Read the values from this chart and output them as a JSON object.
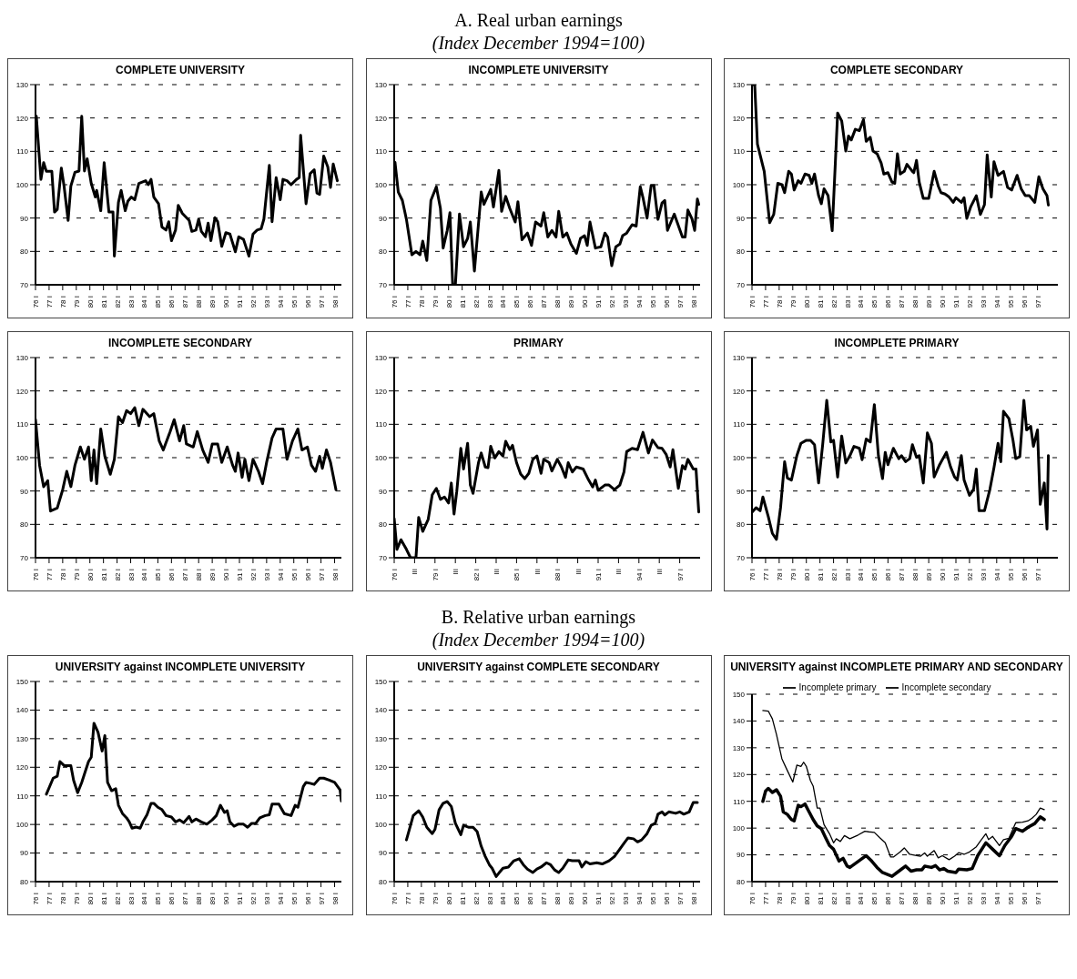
{
  "chart_data": [
    {
      "type": "other",
      "title": "A. Real urban earnings",
      "subtitle": "(Index December 1994=100)"
    },
    {
      "type": "line",
      "title": "COMPLETE UNIVERSITY",
      "color": "#000000",
      "xlim": [
        76,
        98.5
      ],
      "ylim": [
        70,
        130
      ],
      "yticks": [
        70,
        80,
        90,
        100,
        110,
        120,
        130
      ],
      "grid": "y",
      "xticks": [
        {
          "value": 76,
          "label": "76 I"
        },
        {
          "value": 77,
          "label": "77 I"
        },
        {
          "value": 78,
          "label": "78 I"
        },
        {
          "value": 79,
          "label": "79 I"
        },
        {
          "value": 80,
          "label": "80 I"
        },
        {
          "value": 81,
          "label": "81 I"
        },
        {
          "value": 82,
          "label": "82 I"
        },
        {
          "value": 83,
          "label": "83 I"
        },
        {
          "value": 84,
          "label": "84 I"
        },
        {
          "value": 85,
          "label": "85 I"
        },
        {
          "value": 86,
          "label": "86 I"
        },
        {
          "value": 87,
          "label": "87 I"
        },
        {
          "value": 88,
          "label": "88 I"
        },
        {
          "value": 89,
          "label": "89 I"
        },
        {
          "value": 90,
          "label": "90 I"
        },
        {
          "value": 91,
          "label": "91 I"
        },
        {
          "value": 92,
          "label": "92 I"
        },
        {
          "value": 93,
          "label": "93 I"
        },
        {
          "value": 94,
          "label": "94 I"
        },
        {
          "value": 95,
          "label": "95 I"
        },
        {
          "value": 96,
          "label": "96 I"
        },
        {
          "value": 97,
          "label": "97 I"
        },
        {
          "value": 98,
          "label": "98 I"
        }
      ],
      "x": [
        76.06,
        76.4,
        76.6,
        76.8,
        77.2,
        77.4,
        77.6,
        77.9,
        78.1,
        78.4,
        78.6,
        78.9,
        79.2,
        79.4,
        79.6,
        79.8,
        80.1,
        80.4,
        80.5,
        80.8,
        81.05,
        81.4,
        81.7,
        81.8,
        82.1,
        82.3,
        82.6,
        82.8,
        83.05,
        83.3,
        83.6,
        84.1,
        84.3,
        84.5,
        84.7,
        85.05,
        85.3,
        85.6,
        85.8,
        86,
        86.3,
        86.5,
        86.8,
        87.3,
        87.5,
        87.8,
        88,
        88.2,
        88.5,
        88.7,
        88.9,
        89.2,
        89.4,
        89.7,
        90,
        90.3,
        90.7,
        90.95,
        91.3,
        91.7,
        92,
        92.3,
        92.6,
        92.8,
        93.2,
        93.4,
        93.7,
        94,
        94.2,
        94.5,
        94.8,
        95.2,
        95.4,
        95.5,
        95.9,
        96.2,
        96.5,
        96.7,
        96.9,
        97.2,
        97.5,
        97.7,
        97.9,
        98.2
      ],
      "values": [
        120.5,
        101.6,
        106.6,
        104,
        104,
        91.8,
        92.6,
        105,
        99.6,
        89.3,
        99.6,
        103.7,
        104.1,
        120.5,
        104.1,
        107.8,
        100.4,
        96.3,
        98.3,
        92.2,
        106.6,
        91.8,
        91.8,
        78.6,
        94.7,
        98.3,
        92.2,
        95.1,
        96.3,
        95.5,
        100.4,
        101.2,
        100,
        101.6,
        96.3,
        94.3,
        87.3,
        86.4,
        88.9,
        83.2,
        86.4,
        93.8,
        91.4,
        89.3,
        86,
        86.4,
        89.7,
        86,
        84.4,
        88.5,
        83.2,
        90.1,
        88.9,
        81.5,
        85.6,
        85.2,
        79.9,
        84.4,
        83.6,
        78.6,
        85.2,
        86.4,
        86.8,
        89.7,
        105.8,
        88.9,
        102.1,
        95.5,
        101.6,
        101.2,
        100,
        101.6,
        102.1,
        114.8,
        94.3,
        103.3,
        104.5,
        97.5,
        97.1,
        108.6,
        105.3,
        99.2,
        106.2,
        101.2
      ]
    },
    {
      "type": "line",
      "title": "INCOMPLETE UNIVERSITY",
      "color": "#000000",
      "xlim": [
        76,
        98.5
      ],
      "ylim": [
        70,
        130
      ],
      "yticks": [
        70,
        80,
        90,
        100,
        110,
        120,
        130
      ],
      "grid": "y",
      "xticks": [
        {
          "value": 76,
          "label": "76 I"
        },
        {
          "value": 77,
          "label": "77 I"
        },
        {
          "value": 78,
          "label": "78 I"
        },
        {
          "value": 79,
          "label": "79 I"
        },
        {
          "value": 80,
          "label": "80 I"
        },
        {
          "value": 81,
          "label": "81 I"
        },
        {
          "value": 82,
          "label": "82 I"
        },
        {
          "value": 83,
          "label": "83 I"
        },
        {
          "value": 84,
          "label": "84 I"
        },
        {
          "value": 85,
          "label": "85 I"
        },
        {
          "value": 86,
          "label": "86 I"
        },
        {
          "value": 87,
          "label": "87 I"
        },
        {
          "value": 88,
          "label": "88 I"
        },
        {
          "value": 89,
          "label": "89 I"
        },
        {
          "value": 90,
          "label": "90 I"
        },
        {
          "value": 91,
          "label": "91 I"
        },
        {
          "value": 92,
          "label": "92 I"
        },
        {
          "value": 93,
          "label": "93 I"
        },
        {
          "value": 94,
          "label": "94 I"
        },
        {
          "value": 95,
          "label": "95 I"
        },
        {
          "value": 96,
          "label": "96 I"
        },
        {
          "value": 97,
          "label": "97 I"
        },
        {
          "value": 98,
          "label": "98 I"
        }
      ],
      "x": [
        76.06,
        76.3,
        76.6,
        76.9,
        77.3,
        77.6,
        77.9,
        78.1,
        78.4,
        78.7,
        79.1,
        79.4,
        79.6,
        79.9,
        80.1,
        80.3,
        80.5,
        80.8,
        81.1,
        81.4,
        81.6,
        81.9,
        82.4,
        82.6,
        83.1,
        83.3,
        83.7,
        83.9,
        84.2,
        84.5,
        84.9,
        85.1,
        85.4,
        85.8,
        86.1,
        86.4,
        86.8,
        87,
        87.3,
        87.6,
        87.9,
        88.1,
        88.4,
        88.7,
        89,
        89.4,
        89.7,
        90,
        90.2,
        90.4,
        90.8,
        91.2,
        91.5,
        91.7,
        92,
        92.3,
        92.6,
        92.8,
        93.1,
        93.5,
        93.8,
        94.1,
        94.3,
        94.6,
        94.9,
        95.1,
        95.4,
        95.7,
        95.9,
        96.1,
        96.6,
        97.2,
        97.4,
        97.6,
        97.9,
        98.1,
        98.3,
        98.4
      ],
      "values": [
        106.7,
        97.8,
        95.3,
        89.6,
        79,
        80,
        79,
        83.1,
        77.3,
        95.3,
        99.4,
        92.9,
        81,
        86.3,
        91.6,
        70,
        70,
        91.2,
        81.4,
        83.9,
        88.8,
        74.1,
        97.8,
        94.1,
        98.6,
        93.3,
        104.3,
        92,
        96.5,
        92.9,
        88.8,
        94.9,
        83.5,
        85.5,
        81.8,
        88.8,
        87.6,
        91.6,
        84.3,
        86.3,
        84.3,
        92,
        84.3,
        85.5,
        82.2,
        79.4,
        83.9,
        84.7,
        81.8,
        88.8,
        81,
        81.4,
        85.5,
        84.3,
        75.7,
        81.4,
        82.2,
        84.7,
        85.5,
        88,
        87.6,
        99.4,
        96.1,
        90,
        99.8,
        99.8,
        89.6,
        94.5,
        95.3,
        86.3,
        91.2,
        84.3,
        84.3,
        92.4,
        89.8,
        86.3,
        95.7,
        94.1
      ]
    },
    {
      "type": "line",
      "title": "COMPLETE SECONDARY",
      "color": "#000000",
      "xlim": [
        76,
        98.5
      ],
      "ylim": [
        70,
        130
      ],
      "yticks": [
        70,
        80,
        90,
        100,
        110,
        120,
        130
      ],
      "grid": "y",
      "xticks": [
        {
          "value": 76,
          "label": "76 I"
        },
        {
          "value": 77,
          "label": "77 I"
        },
        {
          "value": 78,
          "label": "78 I"
        },
        {
          "value": 79,
          "label": "79 I"
        },
        {
          "value": 80,
          "label": "80 I"
        },
        {
          "value": 81,
          "label": "81 I"
        },
        {
          "value": 82,
          "label": "82 I"
        },
        {
          "value": 83,
          "label": "83 I"
        },
        {
          "value": 84,
          "label": "84 I"
        },
        {
          "value": 85,
          "label": "85 I"
        },
        {
          "value": 86,
          "label": "86 I"
        },
        {
          "value": 87,
          "label": "87 I"
        },
        {
          "value": 88,
          "label": "88 I"
        },
        {
          "value": 89,
          "label": "89 I"
        },
        {
          "value": 90,
          "label": "90 I"
        },
        {
          "value": 91,
          "label": "91 I"
        },
        {
          "value": 92,
          "label": "92 I"
        },
        {
          "value": 93,
          "label": "93 I"
        },
        {
          "value": 94,
          "label": "94 I"
        },
        {
          "value": 95,
          "label": "95 I"
        },
        {
          "value": 96,
          "label": "96 I"
        },
        {
          "value": 97,
          "label": "97 I"
        }
      ],
      "x": [
        76.06,
        76.2,
        76.4,
        76.9,
        77.3,
        77.6,
        77.9,
        78.2,
        78.4,
        78.7,
        78.9,
        79.1,
        79.4,
        79.6,
        79.9,
        80.2,
        80.4,
        80.6,
        80.9,
        81.1,
        81.3,
        81.6,
        81.9,
        82.3,
        82.6,
        82.9,
        83.1,
        83.3,
        83.6,
        83.9,
        84.2,
        84.4,
        84.7,
        84.9,
        85.2,
        85.5,
        85.7,
        86,
        86.3,
        86.5,
        86.7,
        86.9,
        87.2,
        87.4,
        87.8,
        87.9,
        88.1,
        88.3,
        88.6,
        89,
        89.4,
        89.7,
        89.9,
        90.2,
        90.5,
        90.8,
        91,
        91.4,
        91.6,
        91.8,
        92.1,
        92.5,
        92.8,
        93.1,
        93.3,
        93.6,
        93.8,
        94.1,
        94.5,
        94.8,
        95.1,
        95.5,
        95.8,
        96.1,
        96.4,
        96.8,
        97.1,
        97.4,
        97.7,
        97.8
      ],
      "values": [
        130,
        130,
        112.2,
        104,
        88.6,
        91.1,
        100.4,
        100,
        97.6,
        104,
        103.2,
        98.4,
        101.2,
        100.4,
        103.2,
        102.8,
        100.4,
        103.2,
        96.7,
        94.3,
        98.8,
        96.7,
        86.2,
        121.5,
        119.1,
        110.1,
        114.6,
        113.4,
        116.6,
        116.2,
        119.5,
        113,
        114.2,
        110.1,
        109.3,
        106.5,
        103.2,
        103.6,
        100.8,
        100.4,
        109.3,
        103.2,
        104,
        106.1,
        104,
        103.6,
        107.3,
        100.8,
        95.9,
        95.9,
        104,
        99.6,
        97.6,
        97.2,
        96.3,
        94.7,
        96.1,
        94.7,
        96.1,
        89.9,
        93.5,
        96.7,
        91.1,
        94,
        108.9,
        96.3,
        106.9,
        102.8,
        104,
        99.2,
        98.4,
        102.8,
        98.8,
        96.7,
        96.7,
        94.7,
        102.4,
        98.8,
        96.7,
        93.9
      ]
    },
    {
      "type": "line",
      "title": "INCOMPLETE SECONDARY",
      "color": "#000000",
      "xlim": [
        76,
        98.5
      ],
      "ylim": [
        70,
        130
      ],
      "yticks": [
        70,
        80,
        90,
        100,
        110,
        120,
        130
      ],
      "grid": "y",
      "xticks": [
        {
          "value": 76,
          "label": "76 I"
        },
        {
          "value": 77,
          "label": "77 I"
        },
        {
          "value": 78,
          "label": "78 I"
        },
        {
          "value": 79,
          "label": "79 I"
        },
        {
          "value": 80,
          "label": "80 I"
        },
        {
          "value": 81,
          "label": "81 I"
        },
        {
          "value": 82,
          "label": "82 I"
        },
        {
          "value": 83,
          "label": "83 I"
        },
        {
          "value": 84,
          "label": "84 I"
        },
        {
          "value": 85,
          "label": "85 I"
        },
        {
          "value": 86,
          "label": "86 I"
        },
        {
          "value": 87,
          "label": "87 I"
        },
        {
          "value": 88,
          "label": "88 I"
        },
        {
          "value": 89,
          "label": "89 I"
        },
        {
          "value": 90,
          "label": "90 I"
        },
        {
          "value": 91,
          "label": "91 I"
        },
        {
          "value": 92,
          "label": "92 I"
        },
        {
          "value": 93,
          "label": "93 I"
        },
        {
          "value": 94,
          "label": "94 I"
        },
        {
          "value": 95,
          "label": "95 I"
        },
        {
          "value": 96,
          "label": "96 I"
        },
        {
          "value": 97,
          "label": "97 I"
        },
        {
          "value": 98,
          "label": "98 I"
        }
      ],
      "x": [
        76,
        76.3,
        76.6,
        76.9,
        77.1,
        77.6,
        78,
        78.3,
        78.6,
        78.9,
        79.3,
        79.6,
        79.9,
        80.1,
        80.3,
        80.5,
        80.8,
        81.1,
        81.5,
        81.8,
        82.1,
        82.4,
        82.7,
        83,
        83.3,
        83.6,
        83.9,
        84.4,
        84.7,
        85.1,
        85.4,
        85.9,
        86.2,
        86.6,
        86.9,
        87.1,
        87.6,
        87.9,
        88.3,
        88.7,
        89,
        89.4,
        89.7,
        90.1,
        90.5,
        90.7,
        90.9,
        91.2,
        91.4,
        91.7,
        92,
        92.4,
        92.7,
        93,
        93.4,
        93.7,
        94.2,
        94.5,
        94.9,
        95.3,
        95.6,
        96,
        96.3,
        96.6,
        96.9,
        97.1,
        97.4,
        97.7,
        98.1
      ],
      "values": [
        111.4,
        97.7,
        91.3,
        93.1,
        84,
        84.9,
        90.4,
        95.9,
        91.3,
        97.7,
        103.2,
        99.5,
        103.2,
        93.1,
        102.3,
        92.2,
        108.6,
        100.4,
        95,
        99.5,
        112.3,
        110.5,
        114.1,
        113.2,
        115,
        109.6,
        114.5,
        112.3,
        113.2,
        105,
        102.3,
        107.8,
        111.4,
        105,
        109.6,
        104.1,
        103.2,
        107.8,
        102.3,
        98.6,
        104.1,
        104.1,
        98.6,
        103.2,
        97.7,
        95.9,
        101.4,
        94.1,
        99.5,
        93.1,
        99.5,
        95.9,
        92.2,
        98.6,
        105.9,
        108.6,
        108.6,
        99.5,
        105,
        108.6,
        102.3,
        103.2,
        97.7,
        95.9,
        100.4,
        96.8,
        102.3,
        98.6,
        90.4
      ]
    },
    {
      "type": "line",
      "title": "PRIMARY",
      "color": "#000000",
      "xlim": [
        76,
        98.5
      ],
      "ylim": [
        70,
        130
      ],
      "yticks": [
        70,
        80,
        90,
        100,
        110,
        120,
        130
      ],
      "grid": "y",
      "xticks": [
        {
          "value": 76,
          "label": "76 I"
        },
        {
          "value": 77.5,
          "label": "III"
        },
        {
          "value": 79,
          "label": "79 I"
        },
        {
          "value": 80.5,
          "label": "III"
        },
        {
          "value": 82,
          "label": "82 I"
        },
        {
          "value": 83.5,
          "label": "III"
        },
        {
          "value": 85,
          "label": "85 I"
        },
        {
          "value": 86.5,
          "label": "III"
        },
        {
          "value": 88,
          "label": "88 I"
        },
        {
          "value": 89.5,
          "label": "III"
        },
        {
          "value": 91,
          "label": "91 I"
        },
        {
          "value": 92.5,
          "label": "III"
        },
        {
          "value": 94,
          "label": "94 I"
        },
        {
          "value": 95.5,
          "label": "III"
        },
        {
          "value": 97,
          "label": "97 I"
        }
      ],
      "x": [
        76,
        76.2,
        76.5,
        76.9,
        77.2,
        77.6,
        77.8,
        78.1,
        78.5,
        78.8,
        79.1,
        79.4,
        79.7,
        80,
        80.2,
        80.4,
        80.6,
        80.9,
        81.1,
        81.4,
        81.6,
        81.8,
        82.2,
        82.4,
        82.7,
        82.9,
        83.1,
        83.4,
        83.7,
        84,
        84.2,
        84.5,
        84.7,
        85,
        85.3,
        85.6,
        85.9,
        86.2,
        86.5,
        86.8,
        87,
        87.4,
        87.6,
        88,
        88.3,
        88.6,
        88.8,
        89.1,
        89.4,
        89.9,
        90.3,
        90.6,
        90.8,
        91,
        91.5,
        91.8,
        92.2,
        92.6,
        92.9,
        93.1,
        93.5,
        93.9,
        94.3,
        94.7,
        95,
        95.4,
        95.7,
        96,
        96.3,
        96.5,
        96.9,
        97.2,
        97.4,
        97.6,
        98,
        98.2,
        98.4
      ],
      "values": [
        81.7,
        72.5,
        75.4,
        72.5,
        70,
        70,
        82.1,
        77.9,
        81.5,
        88.9,
        90.8,
        87.5,
        88.2,
        86.4,
        92.4,
        83.1,
        89.8,
        102.8,
        96.6,
        104.3,
        91.8,
        89.3,
        98.5,
        101.4,
        97.2,
        97,
        103.4,
        99.9,
        101.8,
        100.5,
        104.9,
        102.4,
        103.7,
        98.5,
        95.1,
        93.7,
        95.3,
        99.5,
        100.5,
        95.3,
        99.5,
        98.5,
        96,
        99.5,
        97.2,
        94.1,
        98.5,
        95.7,
        97.2,
        96.6,
        93.3,
        91.2,
        93.3,
        90.2,
        91.8,
        91.8,
        90.4,
        91.8,
        95.7,
        101.8,
        102.8,
        102.4,
        107.6,
        101.4,
        105.3,
        103,
        102.8,
        101,
        97.2,
        102.4,
        90.8,
        97.6,
        96.6,
        99.5,
        96.6,
        96.6,
        83.7
      ]
    },
    {
      "type": "line",
      "title": "INCOMPLETE PRIMARY",
      "color": "#000000",
      "xlim": [
        76,
        98.5
      ],
      "ylim": [
        70,
        130
      ],
      "yticks": [
        70,
        80,
        90,
        100,
        110,
        120,
        130
      ],
      "grid": "y",
      "xticks": [
        {
          "value": 76,
          "label": "76 I"
        },
        {
          "value": 77,
          "label": "77 I"
        },
        {
          "value": 78,
          "label": "78 I"
        },
        {
          "value": 79,
          "label": "79 I"
        },
        {
          "value": 80,
          "label": "80 I"
        },
        {
          "value": 81,
          "label": "81 I"
        },
        {
          "value": 82,
          "label": "82 I"
        },
        {
          "value": 83,
          "label": "83 I"
        },
        {
          "value": 84,
          "label": "84 I"
        },
        {
          "value": 85,
          "label": "85 I"
        },
        {
          "value": 86,
          "label": "86 I"
        },
        {
          "value": 87,
          "label": "87 I"
        },
        {
          "value": 88,
          "label": "88 I"
        },
        {
          "value": 89,
          "label": "89 I"
        },
        {
          "value": 90,
          "label": "90 I"
        },
        {
          "value": 91,
          "label": "91 I"
        },
        {
          "value": 92,
          "label": "92 I"
        },
        {
          "value": 93,
          "label": "93 I"
        },
        {
          "value": 94,
          "label": "94 I"
        },
        {
          "value": 95,
          "label": "95 I"
        },
        {
          "value": 96,
          "label": "96 I"
        },
        {
          "value": 97,
          "label": "97 I"
        }
      ],
      "x": [
        76,
        76.3,
        76.6,
        76.8,
        77.2,
        77.5,
        77.8,
        78.1,
        78.4,
        78.6,
        78.9,
        79.3,
        79.6,
        80,
        80.3,
        80.6,
        80.9,
        81.2,
        81.5,
        81.8,
        82,
        82.3,
        82.6,
        82.9,
        83.2,
        83.5,
        83.9,
        84.1,
        84.4,
        84.7,
        85,
        85.3,
        85.6,
        85.8,
        86,
        86.4,
        86.8,
        87,
        87.3,
        87.6,
        87.8,
        88.1,
        88.3,
        88.6,
        88.9,
        89.2,
        89.4,
        89.8,
        90.3,
        90.6,
        90.9,
        91.1,
        91.4,
        91.6,
        92,
        92.3,
        92.5,
        92.7,
        93.1,
        93.5,
        93.8,
        94.1,
        94.3,
        94.5,
        94.9,
        95.2,
        95.4,
        95.7,
        96,
        96.2,
        96.5,
        96.7,
        97,
        97.2,
        97.5,
        97.7,
        97.8
      ],
      "values": [
        83.6,
        85,
        84.1,
        88.2,
        82.3,
        77.3,
        75.5,
        85,
        98.8,
        93.9,
        93.3,
        100.6,
        104.3,
        105.2,
        105.2,
        103.9,
        92.4,
        103.9,
        117.2,
        104.7,
        105.2,
        94.2,
        106.5,
        98.4,
        100.6,
        103.4,
        102.8,
        99.4,
        105.6,
        104.7,
        115.9,
        100.6,
        93.7,
        101.6,
        97.9,
        102.8,
        99.7,
        100.6,
        98.8,
        99.7,
        103.9,
        100.1,
        100.6,
        92.4,
        107.4,
        104.3,
        94.2,
        97.9,
        101.6,
        97.3,
        94.2,
        93.3,
        100.6,
        93.3,
        88.7,
        90.5,
        96.6,
        84.1,
        84.1,
        90.5,
        97,
        104.3,
        98.8,
        113.9,
        111.7,
        105.2,
        99.7,
        100.3,
        117.2,
        108.3,
        109.4,
        103.4,
        108.3,
        86,
        92.4,
        78.6,
        100.6
      ]
    },
    {
      "type": "other",
      "title": "B. Relative urban earnings",
      "subtitle": "(Index December 1994=100)"
    },
    {
      "type": "line",
      "title": "UNIVERSITY against INCOMPLETE UNIVERSITY",
      "color": "#000000",
      "xlim": [
        76,
        98.5
      ],
      "ylim": [
        80,
        150
      ],
      "yticks": [
        80,
        90,
        100,
        110,
        120,
        130,
        140,
        150
      ],
      "grid": "y",
      "xticks": [
        {
          "value": 76,
          "label": "76 I"
        },
        {
          "value": 77,
          "label": "77 I"
        },
        {
          "value": 78,
          "label": "78 I"
        },
        {
          "value": 79,
          "label": "79 I"
        },
        {
          "value": 80,
          "label": "80 I"
        },
        {
          "value": 81,
          "label": "81 I"
        },
        {
          "value": 82,
          "label": "82 I"
        },
        {
          "value": 83,
          "label": "83 I"
        },
        {
          "value": 84,
          "label": "84 I"
        },
        {
          "value": 85,
          "label": "85 I"
        },
        {
          "value": 86,
          "label": "86 I"
        },
        {
          "value": 87,
          "label": "87 I"
        },
        {
          "value": 88,
          "label": "88 I"
        },
        {
          "value": 89,
          "label": "89 I"
        },
        {
          "value": 90,
          "label": "90 I"
        },
        {
          "value": 91,
          "label": "91 I"
        },
        {
          "value": 92,
          "label": "92 I"
        },
        {
          "value": 93,
          "label": "93 I"
        },
        {
          "value": 94,
          "label": "94 I"
        },
        {
          "value": 95,
          "label": "95 I"
        },
        {
          "value": 96,
          "label": "96 I"
        },
        {
          "value": 97,
          "label": "97 I"
        },
        {
          "value": 98,
          "label": "98 I"
        }
      ],
      "x": [
        76.8,
        77.3,
        77.6,
        77.8,
        78.1,
        78.6,
        78.8,
        79.1,
        79.4,
        79.6,
        79.9,
        80.1,
        80.3,
        80.6,
        80.9,
        81.1,
        81.3,
        81.6,
        81.9,
        82.1,
        82.4,
        82.7,
        82.9,
        83.1,
        83.4,
        83.7,
        83.9,
        84.2,
        84.5,
        84.7,
        85,
        85.3,
        85.6,
        86,
        86.3,
        86.6,
        86.9,
        87.3,
        87.5,
        87.8,
        88.2,
        88.6,
        89,
        89.3,
        89.6,
        89.9,
        90.1,
        90.3,
        90.6,
        90.9,
        91.3,
        91.6,
        91.9,
        92.2,
        92.5,
        92.9,
        93.2,
        93.4,
        93.9,
        94.3,
        94.8,
        95.1,
        95.3,
        95.7,
        95.9,
        96.2,
        96.5,
        96.9,
        97.2,
        97.6,
        98,
        98.4,
        98.5
      ],
      "values": [
        110.6,
        116.2,
        116.9,
        122,
        120.6,
        120.6,
        115.5,
        111.1,
        114.7,
        117.6,
        122,
        123.5,
        135.4,
        132.2,
        125.7,
        131.1,
        114.7,
        111.8,
        112.5,
        106.7,
        103.8,
        102.3,
        100.9,
        98.7,
        99.1,
        98.7,
        100.9,
        103.4,
        107.4,
        107.4,
        106,
        105.2,
        103.1,
        102.6,
        100.9,
        101.6,
        100.6,
        102.8,
        100.9,
        101.9,
        100.9,
        100.1,
        101.6,
        103.1,
        106.7,
        104.2,
        104.8,
        100.9,
        99.4,
        100.1,
        100.1,
        99,
        100.4,
        100.4,
        102.3,
        103.1,
        103.4,
        107.1,
        107.1,
        103.8,
        103.1,
        106.7,
        106,
        113.3,
        114.7,
        114.4,
        114,
        116.2,
        116.2,
        115.5,
        114.7,
        112.1,
        108.2
      ]
    },
    {
      "type": "line",
      "title": "UNIVERSITY against COMPLETE SECONDARY",
      "color": "#000000",
      "xlim": [
        76,
        98.5
      ],
      "ylim": [
        80,
        150
      ],
      "yticks": [
        80,
        90,
        100,
        110,
        120,
        130,
        140,
        150
      ],
      "grid": "y",
      "xticks": [
        {
          "value": 76,
          "label": "76 I"
        },
        {
          "value": 77,
          "label": "77 I"
        },
        {
          "value": 78,
          "label": "78 I"
        },
        {
          "value": 79,
          "label": "79 I"
        },
        {
          "value": 80,
          "label": "80 I"
        },
        {
          "value": 81,
          "label": "81 I"
        },
        {
          "value": 82,
          "label": "82 I"
        },
        {
          "value": 83,
          "label": "83 I"
        },
        {
          "value": 84,
          "label": "84 I"
        },
        {
          "value": 85,
          "label": "85 I"
        },
        {
          "value": 86,
          "label": "86 I"
        },
        {
          "value": 87,
          "label": "87 I"
        },
        {
          "value": 88,
          "label": "88 I"
        },
        {
          "value": 89,
          "label": "89 I"
        },
        {
          "value": 90,
          "label": "90 I"
        },
        {
          "value": 91,
          "label": "91 I"
        },
        {
          "value": 92,
          "label": "92 I"
        },
        {
          "value": 93,
          "label": "93 I"
        },
        {
          "value": 94,
          "label": "94 I"
        },
        {
          "value": 95,
          "label": "95 I"
        },
        {
          "value": 96,
          "label": "96 I"
        },
        {
          "value": 97,
          "label": "97 I"
        },
        {
          "value": 98,
          "label": "98 I"
        }
      ],
      "x": [
        76.9,
        77.2,
        77.4,
        77.8,
        78.1,
        78.4,
        78.8,
        79,
        79.3,
        79.6,
        79.9,
        80.2,
        80.5,
        80.9,
        81.1,
        81.5,
        81.8,
        82.1,
        82.4,
        82.7,
        83,
        83.2,
        83.5,
        83.7,
        84,
        84.4,
        84.8,
        85.2,
        85.5,
        85.8,
        86.2,
        86.5,
        86.8,
        87.2,
        87.5,
        87.8,
        88.1,
        88.4,
        88.8,
        89.1,
        89.6,
        89.8,
        90.1,
        90.4,
        90.9,
        91.3,
        91.8,
        92.2,
        92.6,
        92.9,
        93.2,
        93.6,
        93.9,
        94.2,
        94.6,
        94.9,
        95.2,
        95.4,
        95.7,
        95.9,
        96.2,
        96.7,
        97,
        97.3,
        97.7,
        98,
        98.3
      ],
      "values": [
        94.6,
        99.7,
        103.1,
        104.8,
        102.6,
        99,
        96.8,
        98.3,
        105.1,
        107.4,
        108,
        106.3,
        100.4,
        96.4,
        99.7,
        99,
        99,
        97.5,
        92.4,
        88.8,
        85.9,
        84.7,
        81.8,
        83,
        84.7,
        85.1,
        87.3,
        88,
        85.9,
        84.4,
        83.2,
        84.4,
        85.1,
        86.6,
        85.9,
        84.1,
        83.2,
        84.7,
        87.6,
        87.3,
        87.3,
        85.1,
        87,
        86.2,
        86.6,
        86.2,
        87.3,
        88.8,
        91.4,
        93.4,
        95.3,
        95,
        93.9,
        94.6,
        96.8,
        99.7,
        100.4,
        103.6,
        104.4,
        103.3,
        104.4,
        103.9,
        104.4,
        103.6,
        104.4,
        107.7,
        107.7
      ]
    },
    {
      "type": "line",
      "title": "UNIVERSITY against INCOMPLETE PRIMARY AND SECONDARY",
      "xlim": [
        76,
        98.5
      ],
      "ylim": [
        80,
        150
      ],
      "yticks": [
        80,
        90,
        100,
        110,
        120,
        130,
        140,
        150
      ],
      "grid": "y",
      "legend": "top",
      "xticks": [
        {
          "value": 76,
          "label": "76 I"
        },
        {
          "value": 77,
          "label": "77 I"
        },
        {
          "value": 78,
          "label": "78 I"
        },
        {
          "value": 79,
          "label": "79 I"
        },
        {
          "value": 80,
          "label": "80 I"
        },
        {
          "value": 81,
          "label": "81 I"
        },
        {
          "value": 82,
          "label": "82 I"
        },
        {
          "value": 83,
          "label": "83 I"
        },
        {
          "value": 84,
          "label": "84 I"
        },
        {
          "value": 85,
          "label": "85 I"
        },
        {
          "value": 86,
          "label": "86 I"
        },
        {
          "value": 87,
          "label": "87 I"
        },
        {
          "value": 88,
          "label": "88 I"
        },
        {
          "value": 89,
          "label": "89 I"
        },
        {
          "value": 90,
          "label": "90 I"
        },
        {
          "value": 91,
          "label": "91 I"
        },
        {
          "value": 92,
          "label": "92 I"
        },
        {
          "value": 93,
          "label": "93 I"
        },
        {
          "value": 94,
          "label": "94 I"
        },
        {
          "value": 95,
          "label": "95 I"
        },
        {
          "value": 96,
          "label": "96 I"
        },
        {
          "value": 97,
          "label": "97 I"
        }
      ],
      "series": [
        {
          "name": "Incomplete primary",
          "color": "#000000",
          "x": [
            76.8,
            77.2,
            77.5,
            77.8,
            78.2,
            78.6,
            79,
            79.3,
            79.6,
            79.8,
            80,
            80.3,
            80.5,
            80.8,
            81,
            81.3,
            81.7,
            82,
            82.2,
            82.5,
            82.8,
            83.2,
            83.8,
            84.3,
            84.6,
            85,
            85.4,
            85.8,
            86.2,
            86.4,
            86.9,
            87.2,
            87.6,
            88.1,
            88.4,
            88.7,
            88.9,
            89.4,
            89.7,
            90,
            90.5,
            90.9,
            91.2,
            91.6,
            92,
            92.5,
            92.8,
            93.2,
            93.4,
            93.7,
            94.2,
            94.5,
            94.9,
            95.4,
            95.9,
            96.3,
            96.6,
            96.9,
            97.2,
            97.5
          ],
          "values": [
            143.9,
            143.7,
            140.8,
            135,
            125.9,
            121.5,
            117.2,
            123.5,
            123,
            124.6,
            123,
            117.7,
            115.7,
            107.5,
            107.5,
            101.3,
            97.9,
            94.5,
            96,
            95,
            97.2,
            96,
            97.4,
            98.8,
            98.6,
            98.4,
            96.4,
            94.5,
            89.2,
            89.2,
            91.1,
            92.6,
            90.2,
            89.7,
            89.5,
            90.7,
            89.5,
            91.6,
            88.9,
            89.7,
            88.2,
            89.5,
            90.8,
            90.2,
            91.1,
            93,
            95.2,
            97.9,
            95.7,
            96.9,
            93.5,
            95.7,
            96.2,
            102,
            102.2,
            102.7,
            103.7,
            105.1,
            107.5,
            106.9
          ]
        },
        {
          "name": "Incomplete secondary",
          "color": "#000000",
          "x": [
            76.8,
            77,
            77.2,
            77.5,
            77.8,
            78.1,
            78.3,
            78.6,
            78.9,
            79.1,
            79.4,
            79.6,
            79.9,
            80.1,
            80.5,
            80.8,
            81.1,
            81.4,
            81.7,
            82,
            82.4,
            82.7,
            83,
            83.2,
            83.8,
            84.4,
            84.8,
            85.2,
            85.6,
            86.3,
            86.8,
            87.3,
            87.7,
            88.1,
            88.5,
            88.7,
            89.2,
            89.5,
            89.8,
            90.1,
            90.4,
            91,
            91.2,
            91.8,
            92.2,
            92.6,
            93.2,
            93.7,
            94.2,
            94.6,
            95.1,
            95.4,
            95.9,
            96.3,
            96.8,
            97.2,
            97.5
          ],
          "values": [
            110,
            113.8,
            114.8,
            113.3,
            114.3,
            111.9,
            106.1,
            105.1,
            103.2,
            102.7,
            108.5,
            108,
            109,
            107,
            103.2,
            100.8,
            99.8,
            96.6,
            93.5,
            92.1,
            87.7,
            88.7,
            85.8,
            85.3,
            87.5,
            89.7,
            87.7,
            85.3,
            83.4,
            82,
            83.9,
            85.8,
            83.9,
            84.4,
            84.4,
            85.8,
            85.3,
            86,
            84.4,
            84.9,
            83.9,
            83.4,
            84.7,
            84.4,
            84.9,
            89.7,
            94.5,
            92.1,
            89.7,
            93.5,
            96.9,
            99.8,
            98.8,
            100.3,
            101.7,
            104.2,
            103.2
          ]
        }
      ]
    }
  ]
}
